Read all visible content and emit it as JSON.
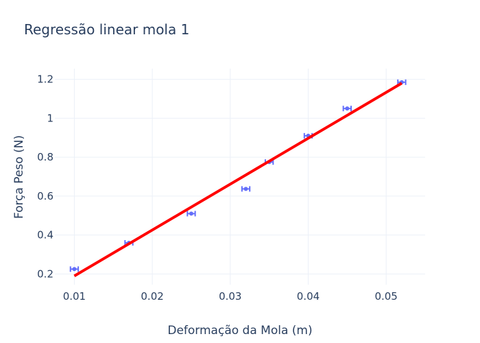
{
  "chart_data": {
    "type": "scatter",
    "title": "Regressão linear mola 1",
    "xlabel": "Deformação da Mola (m)",
    "ylabel": "Força Peso (N)",
    "xlim": [
      0.0075,
      0.055
    ],
    "ylim": [
      0.145,
      1.255
    ],
    "xticks": [
      {
        "value": 0.01,
        "label": "0.01"
      },
      {
        "value": 0.02,
        "label": "0.02"
      },
      {
        "value": 0.03,
        "label": "0.03"
      },
      {
        "value": 0.04,
        "label": "0.04"
      },
      {
        "value": 0.05,
        "label": "0.05"
      }
    ],
    "yticks": [
      {
        "value": 0.2,
        "label": "0.2"
      },
      {
        "value": 0.4,
        "label": "0.4"
      },
      {
        "value": 0.6,
        "label": "0.6"
      },
      {
        "value": 0.8,
        "label": "0.8"
      },
      {
        "value": 1.0,
        "label": "1"
      },
      {
        "value": 1.2,
        "label": "1.2"
      }
    ],
    "grid": true,
    "legend": "none",
    "series": [
      {
        "type": "scatter",
        "color": "#636efa",
        "x_error": 0.0005,
        "x": [
          0.01,
          0.017,
          0.025,
          0.032,
          0.035,
          0.04,
          0.045,
          0.052
        ],
        "y": [
          0.225,
          0.36,
          0.51,
          0.637,
          0.775,
          0.91,
          1.05,
          1.185
        ]
      },
      {
        "type": "line",
        "color": "#ff0000",
        "x": [
          0.01,
          0.052
        ],
        "y": [
          0.19,
          1.18
        ]
      }
    ]
  }
}
